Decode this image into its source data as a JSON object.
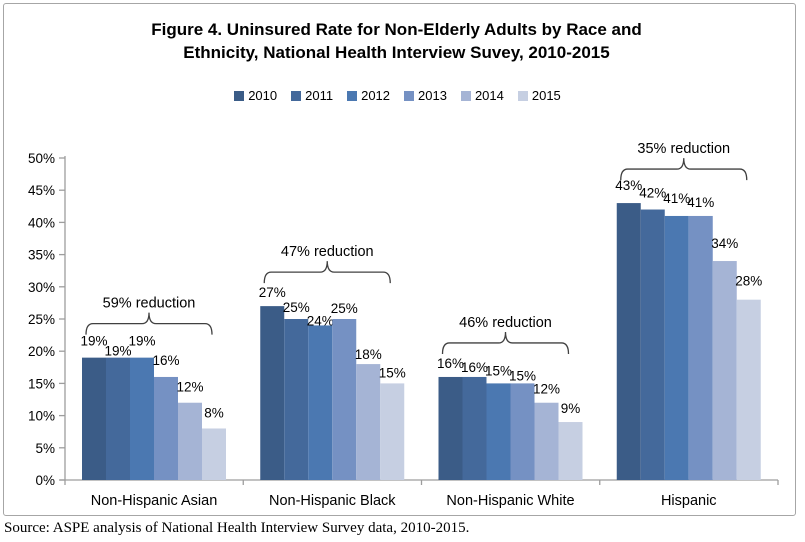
{
  "figure": {
    "title_line1": "Figure 4. Uninsured Rate for Non-Elderly Adults by Race and",
    "title_line2": "Ethnicity, National Health Interview Suvey, 2010-2015",
    "source": "Source: ASPE analysis of National Health Interview Survey data, 2010-2015."
  },
  "chart_data": {
    "type": "bar",
    "title": "Figure 4. Uninsured Rate for Non-Elderly Adults by Race and Ethnicity, National Health Interview Suvey, 2010-2015",
    "xlabel": "",
    "ylabel": "",
    "ylim": [
      0,
      50
    ],
    "y_tick_step": 5,
    "y_tick_labels": [
      "0%",
      "5%",
      "10%",
      "15%",
      "20%",
      "25%",
      "30%",
      "35%",
      "40%",
      "45%",
      "50%"
    ],
    "gridlines": false,
    "legend_position": "top",
    "categories": [
      "Non-Hispanic Asian",
      "Non-Hispanic Black",
      "Non-Hispanic White",
      "Hispanic"
    ],
    "series": [
      {
        "name": "2010",
        "color": "#3B5C87",
        "values": [
          19,
          27,
          16,
          43
        ]
      },
      {
        "name": "2011",
        "color": "#44699B",
        "values": [
          19,
          25,
          16,
          42
        ]
      },
      {
        "name": "2012",
        "color": "#4B78B1",
        "values": [
          19,
          24,
          15,
          41
        ]
      },
      {
        "name": "2013",
        "color": "#7591C3",
        "values": [
          16,
          25,
          15,
          41
        ]
      },
      {
        "name": "2014",
        "color": "#A5B4D5",
        "values": [
          12,
          18,
          12,
          34
        ]
      },
      {
        "name": "2015",
        "color": "#C6CFE2",
        "values": [
          8,
          15,
          9,
          28
        ]
      }
    ],
    "value_label_format": "percent",
    "annotations": [
      {
        "category": "Non-Hispanic Asian",
        "text": "59% reduction"
      },
      {
        "category": "Non-Hispanic Black",
        "text": "47% reduction"
      },
      {
        "category": "Non-Hispanic White",
        "text": "46% reduction"
      },
      {
        "category": "Hispanic",
        "text": "35% reduction"
      }
    ]
  },
  "colors": {
    "axis": "#9d9d9d",
    "chart_border": "#a6a6a6",
    "brace": "#404040",
    "text": "#000000",
    "background": "#ffffff"
  }
}
